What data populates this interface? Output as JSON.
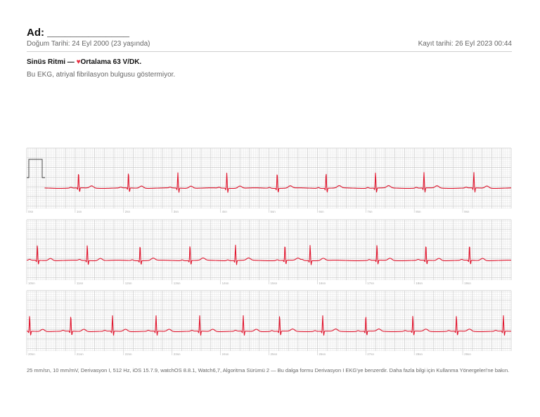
{
  "header": {
    "name_label": "Ad: ______________",
    "birth": "Doğum Tarihi: 24 Eyl 2000 (23 yaşında)",
    "recorded": "Kayıt tarihi: 26 Eyl 2023 00:44"
  },
  "summary": {
    "rhythm": "Sinüs Ritmi — ",
    "heart_icon": "♥",
    "average": "Ortalama 63 V/DK.",
    "description": "Bu EKG, atriyal fibrilasyon bulgusu göstermiyor."
  },
  "colors": {
    "trace": "#e0172f",
    "grid_minor": "#e6e6e6",
    "grid_major": "#c8c8c8"
  },
  "ecg": {
    "strips": [
      {
        "labels": [
          "0sn",
          "1sn",
          "2sn",
          "3sn",
          "4sn",
          "5sn",
          "6sn",
          "7sn",
          "8sn",
          "9sn"
        ],
        "beats_sec": [
          1.07,
          2.1,
          3.12,
          4.13,
          5.17,
          6.18,
          7.2,
          8.2,
          9.23
        ]
      },
      {
        "labels": [
          "10sn",
          "11sn",
          "12sn",
          "13sn",
          "14sn",
          "15sn",
          "16sn",
          "17sn",
          "18sn",
          "19sn"
        ],
        "beats_sec": [
          0.22,
          1.25,
          2.34,
          3.37,
          4.31,
          5.33,
          5.85,
          7.23,
          8.24,
          9.14
        ]
      },
      {
        "labels": [
          "20sn",
          "21sn",
          "22sn",
          "23sn",
          "24sn",
          "25sn",
          "26sn",
          "27sn",
          "28sn",
          "29sn"
        ],
        "beats_sec": [
          0.06,
          0.91,
          1.77,
          2.67,
          3.57,
          4.47,
          5.22,
          6.11,
          7.0,
          7.97,
          8.87,
          9.84
        ]
      }
    ]
  },
  "footer": "25 mm/sn, 10 mm/mV, Derivasyon I, 512 Hz, iOS 15.7.9, watchOS 8.8.1, Watch6,7, Algoritma Sürümü 2 — Bu dalga formu Derivasyon I EKG'ye benzerdir. Daha fazla bilgi için Kullanma Yönergeleri'ne bakın."
}
